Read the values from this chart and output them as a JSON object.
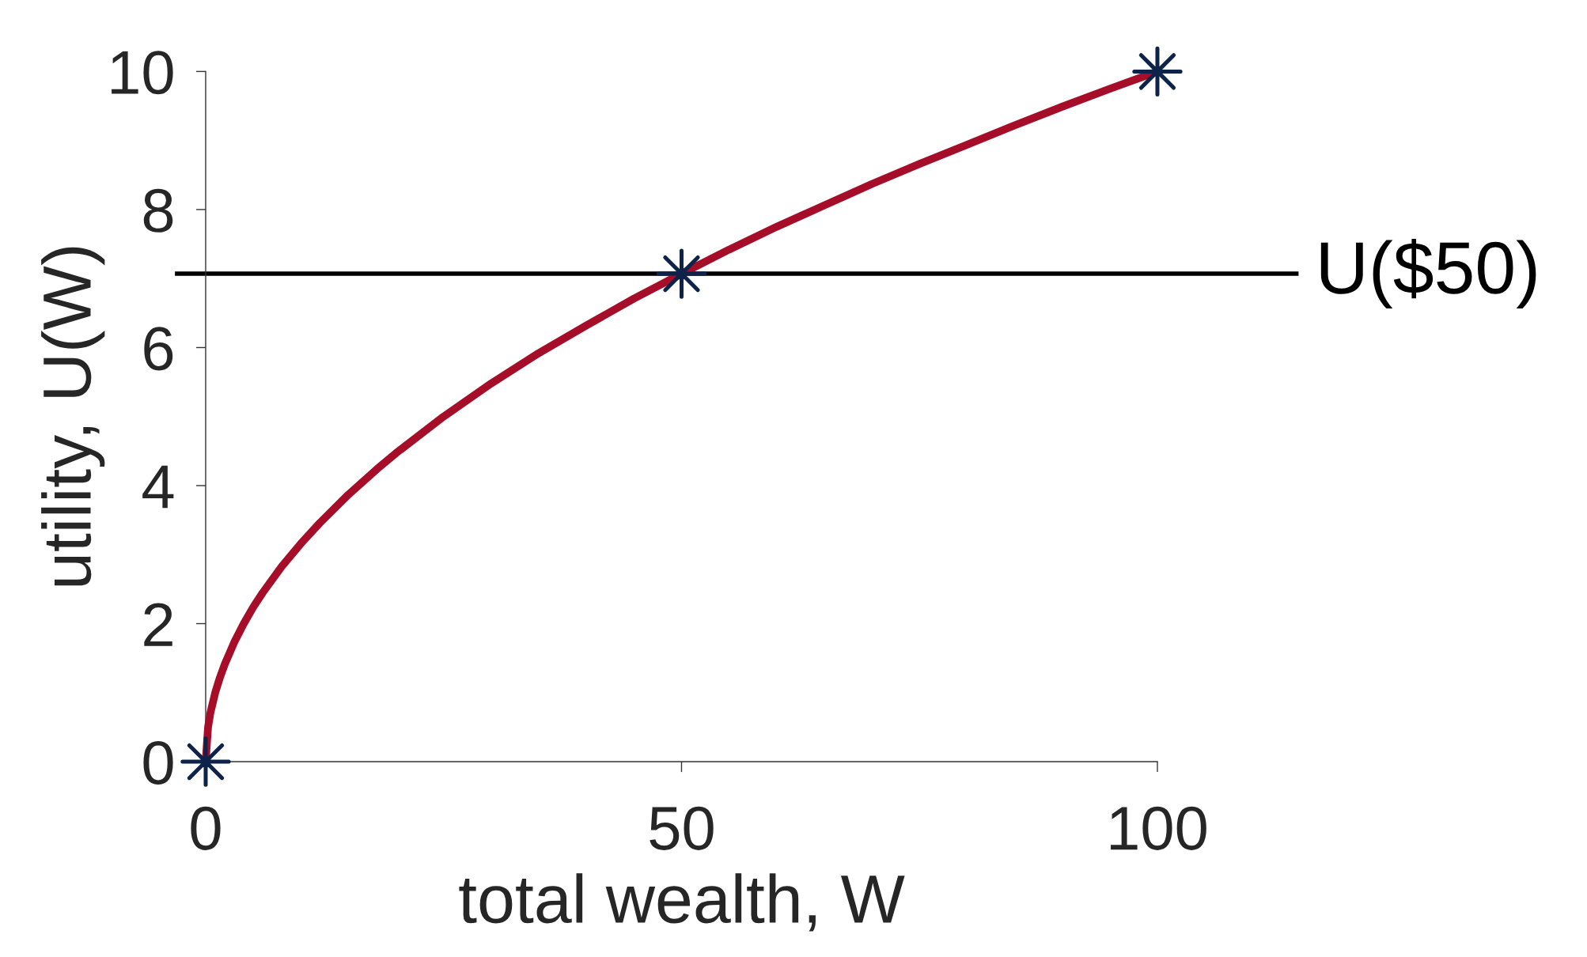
{
  "chart_data": {
    "type": "line",
    "xlabel": "total wealth, W",
    "ylabel": "utility, U(W)",
    "xlim": [
      0,
      100
    ],
    "ylim": [
      0,
      10
    ],
    "xticks": [
      0,
      50,
      100
    ],
    "yticks": [
      0,
      2,
      4,
      6,
      8,
      10
    ],
    "series": [
      {
        "color": "#a50d28",
        "marker": "none",
        "line_style": "solid",
        "x": [
          0,
          0.25,
          0.5,
          1,
          1.5,
          2,
          3,
          4,
          5,
          6,
          8,
          10,
          12,
          15,
          18,
          20,
          25,
          30,
          35,
          40,
          45,
          50,
          55,
          60,
          65,
          70,
          75,
          80,
          85,
          90,
          95,
          100
        ],
        "values": [
          0,
          0.5,
          0.71,
          1,
          1.22,
          1.41,
          1.73,
          2,
          2.24,
          2.45,
          2.83,
          3.16,
          3.46,
          3.87,
          4.24,
          4.47,
          5,
          5.48,
          5.92,
          6.32,
          6.71,
          7.07,
          7.42,
          7.75,
          8.06,
          8.37,
          8.66,
          8.94,
          9.22,
          9.49,
          9.75,
          10
        ]
      },
      {
        "type": "scatter",
        "color": "#0d2349",
        "marker": "star",
        "x": [
          0,
          50,
          100
        ],
        "values": [
          0,
          7.07,
          10
        ]
      }
    ],
    "ref_lines": [
      {
        "axis": "y",
        "value": 7.07,
        "label": "U($50)",
        "color": "#000000",
        "line_style": "solid"
      }
    ]
  }
}
